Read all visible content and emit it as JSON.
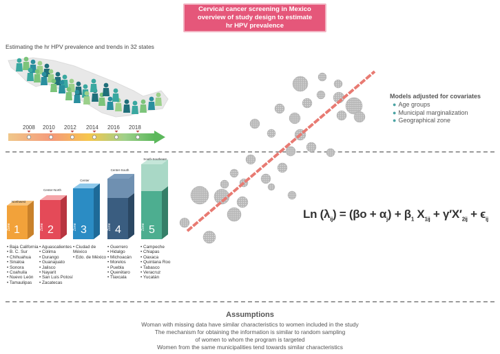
{
  "title": {
    "line1": "Cervical cancer screening in Mexico",
    "line2": "overview of study design to estimate",
    "line3": "hr HPV prevalence"
  },
  "subtitle": "Estimating the hr HPV prevalence and trends in 32 states",
  "timeline": {
    "years": [
      "2008",
      "2010",
      "2012",
      "2014",
      "2016",
      "2018"
    ]
  },
  "zones": [
    {
      "region": "Northwest",
      "label": "Zone",
      "num": "1",
      "color": "#f2a23a",
      "top_color": "#f7c27a",
      "states": [
        "Baja California",
        "B. C. Sur",
        "Chihuahua",
        "Sinaloa",
        "Sonora",
        "Coahuila",
        "Nuevo León",
        "Tamaulipas"
      ]
    },
    {
      "region": "Center-North",
      "label": "Zone",
      "num": "2",
      "color": "#e44a58",
      "top_color": "#f5a5a9",
      "states": [
        "Aguascalientes",
        "Colima",
        "Durango",
        "Guanajuato",
        "Jalisco",
        "Nayarit",
        "San Luis Potosí",
        "Zacatecas"
      ]
    },
    {
      "region": "Center",
      "label": "Zone",
      "num": "3",
      "color": "#2b8cc4",
      "top_color": "#8ec8ea",
      "states": [
        "Ciudad de México",
        "Edo. de México"
      ]
    },
    {
      "region": "Center-South",
      "label": "Zone",
      "num": "4",
      "color": "#3a5d80",
      "top_color": "#7d9dbd",
      "states": [
        "Guerrero",
        "Hidalgo",
        "Michoacán",
        "Morelos",
        "Puebla",
        "Querétaro",
        "Tlaxcala"
      ]
    },
    {
      "region": "South-Southeast",
      "label": "Zone",
      "num": "5",
      "color": "#4dae90",
      "top_color": "#a9d8c6",
      "states": [
        "Campeche",
        "Chiapas",
        "Oaxaca",
        "Quintana Roo",
        "Tabasco",
        "Veracruz",
        "Yucatán"
      ]
    }
  ],
  "models": {
    "heading": "Models adjusted for covariates",
    "items": [
      "Age groups",
      "Municipal marginalization",
      "Geographical zone"
    ]
  },
  "equation": {
    "ln": "Ln",
    "lambda": "λ",
    "ij": "ij",
    "mid": ") = (βo + α",
    "j": "j",
    "beta": ") + β",
    "one": "1",
    "x": " X",
    "sub1ij": "1ij",
    "gamma": " + γ′X′",
    "sub2ij": "2ij",
    "eps": " + ϵ",
    "epsij": "ij"
  },
  "assumptions": {
    "heading": "Assumptions",
    "lines": [
      "Woman with missing data have similar characteristics to women included in the study",
      "The mechanism for obtaining the information is similar to random sampling",
      "of women to whom the program is targeted",
      "Women from the same municipalities tend towards similar characteristics"
    ]
  },
  "colors": {
    "title_bg": "#e5577a",
    "regression_line": "#e87a72",
    "bubble": "#b8b8b8",
    "bullet": "#4aa3a3"
  }
}
